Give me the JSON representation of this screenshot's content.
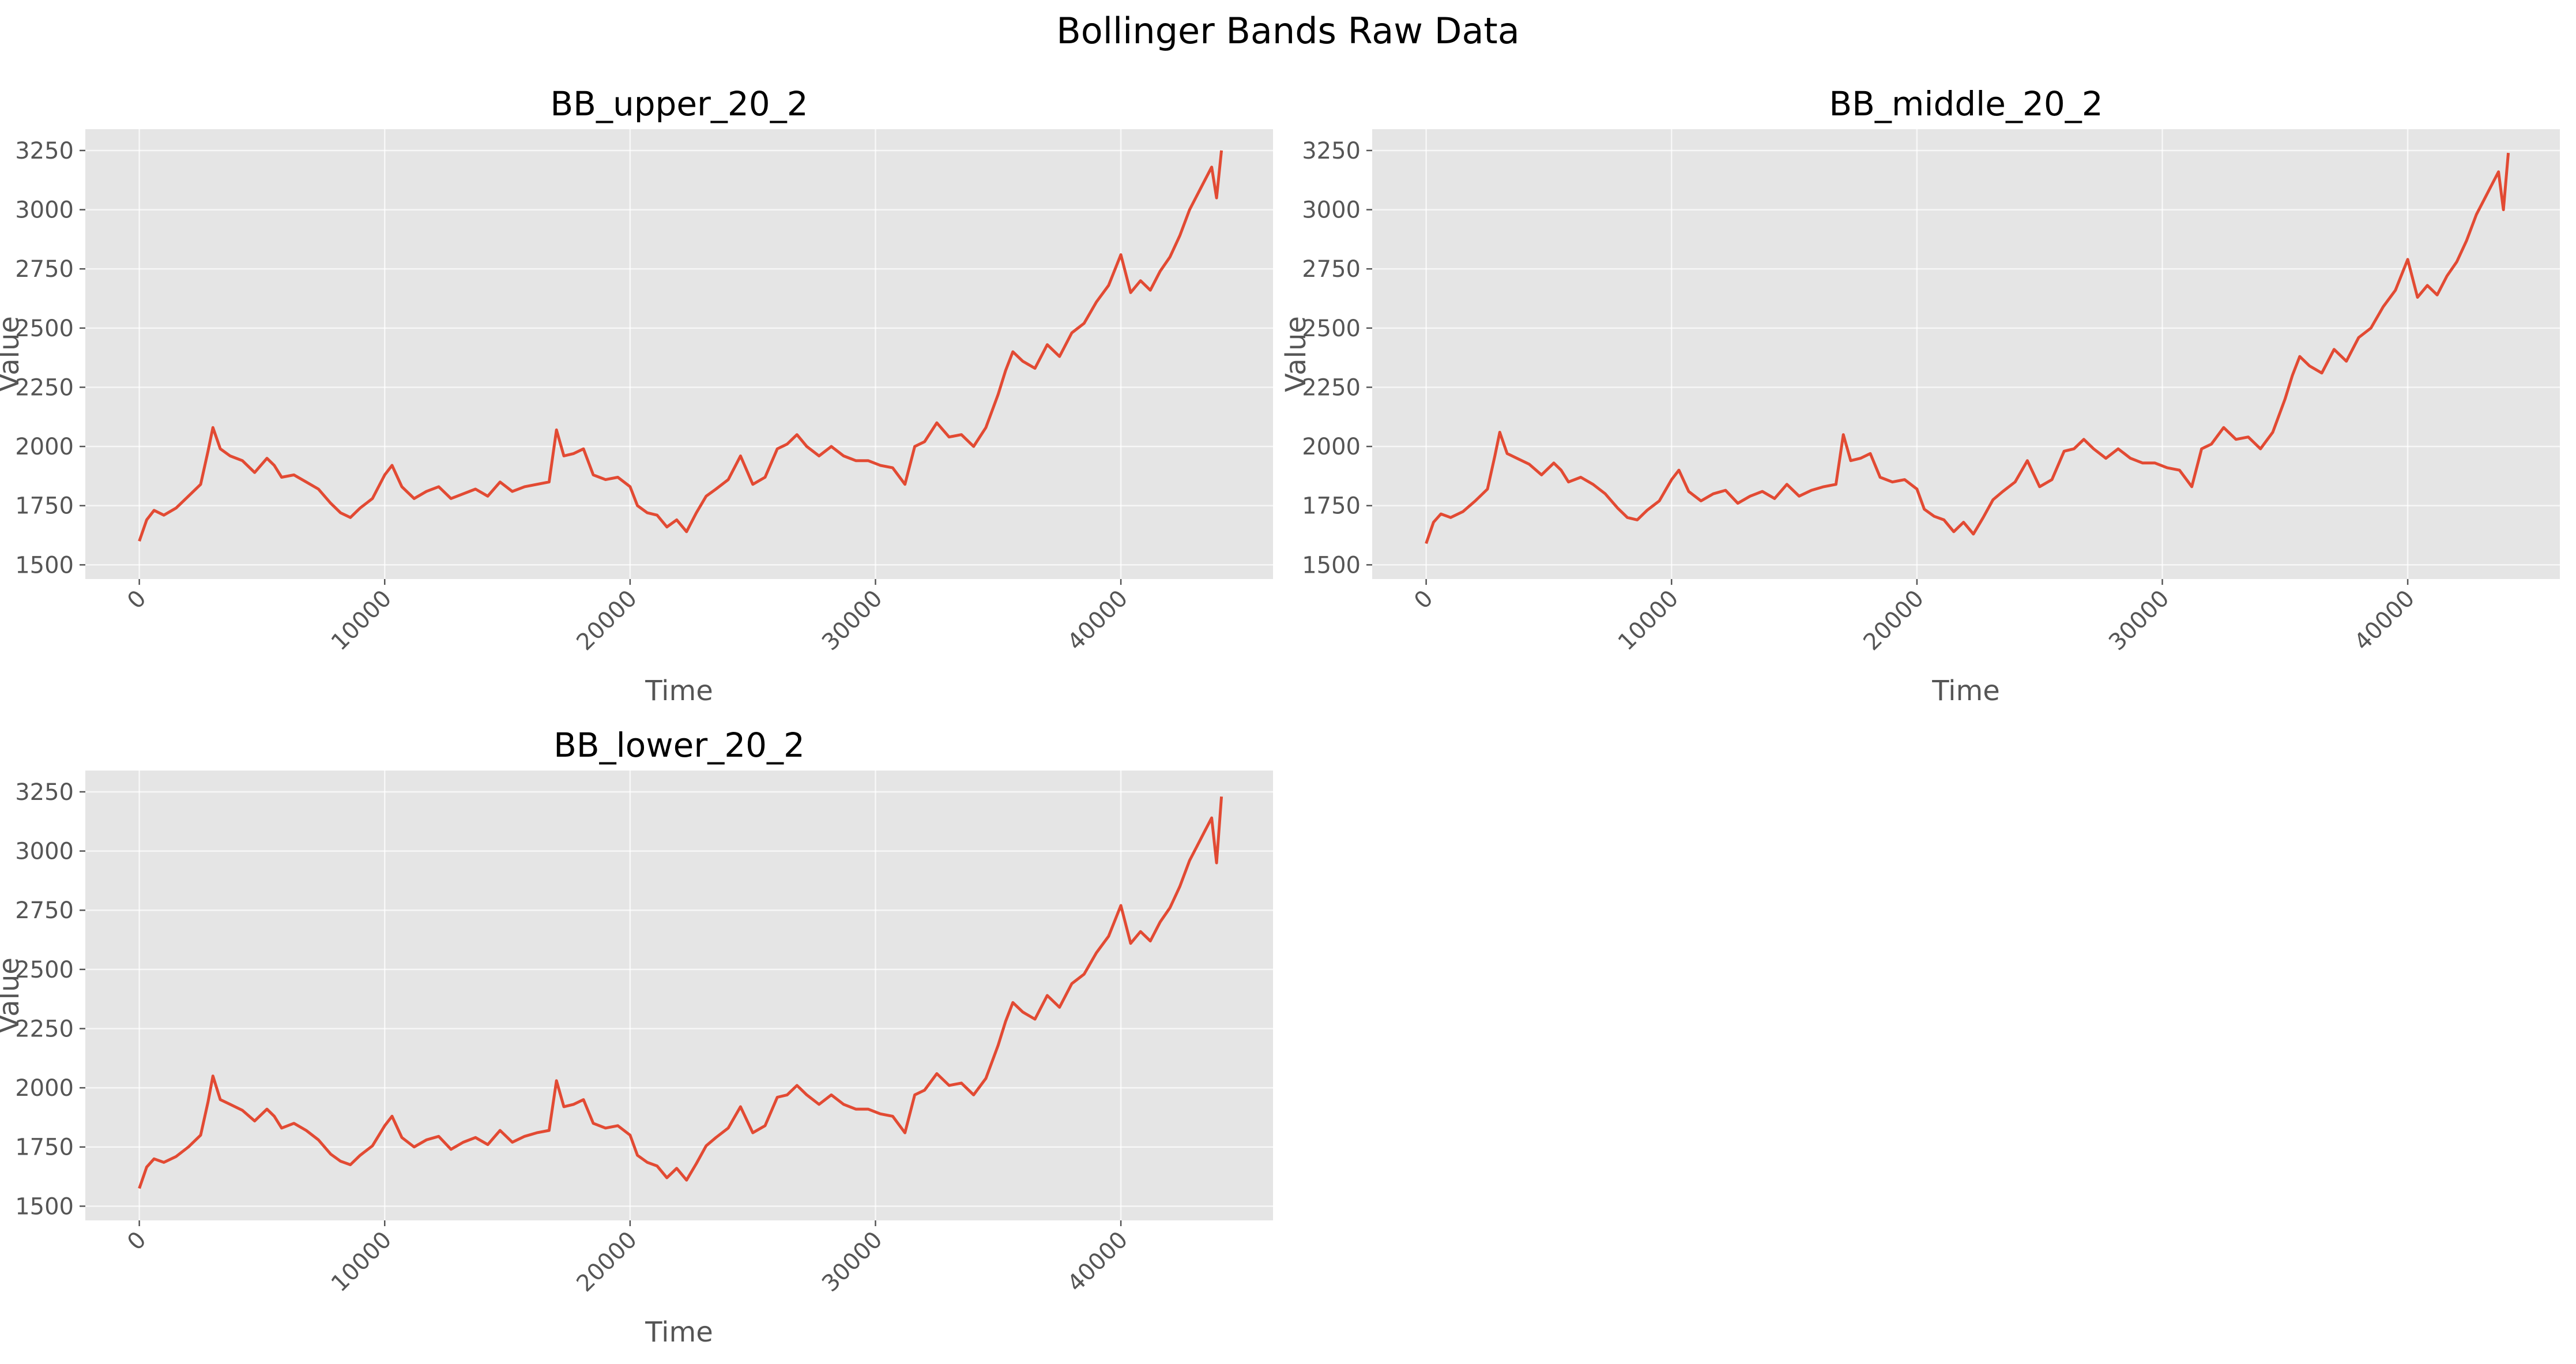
{
  "figure": {
    "suptitle": "Bollinger Bands Raw Data",
    "background": "#ffffff",
    "axes_facecolor": "#e5e5e5",
    "grid_color": "#ffffff",
    "line_color": "#e24a33",
    "tick_label_color": "#555555"
  },
  "chart_data": [
    {
      "type": "line",
      "title": "BB_upper_20_2",
      "xlabel": "Time",
      "ylabel": "Value",
      "grid": true,
      "xlim": [
        -2200,
        46200
      ],
      "ylim": [
        1440,
        3340
      ],
      "xticks": [
        0,
        10000,
        20000,
        30000,
        40000
      ],
      "yticks": [
        1500,
        1750,
        2000,
        2250,
        2500,
        2750,
        3000,
        3250
      ],
      "xticklabels": [
        "0",
        "10000",
        "20000",
        "30000",
        "40000"
      ],
      "yticklabels": [
        "1500",
        "1750",
        "2000",
        "2250",
        "2500",
        "2750",
        "3000",
        "3250"
      ],
      "series": [
        {
          "x": [
            0,
            300,
            600,
            1000,
            1500,
            2000,
            2500,
            2800,
            3000,
            3300,
            3700,
            4200,
            4700,
            5200,
            5500,
            5800,
            6300,
            6800,
            7300,
            7800,
            8200,
            8600,
            9000,
            9500,
            10000,
            10300,
            10700,
            11200,
            11700,
            12200,
            12700,
            13200,
            13700,
            14200,
            14700,
            15200,
            15700,
            16200,
            16700,
            17000,
            17300,
            17700,
            18100,
            18500,
            19000,
            19500,
            20000,
            20300,
            20700,
            21100,
            21500,
            21900,
            22300,
            22700,
            23100,
            23500,
            24000,
            24500,
            25000,
            25500,
            26000,
            26400,
            26800,
            27200,
            27700,
            28200,
            28700,
            29200,
            29700,
            30200,
            30700,
            31200,
            31600,
            32000,
            32500,
            33000,
            33500,
            34000,
            34500,
            35000,
            35300,
            35600,
            36000,
            36500,
            37000,
            37500,
            38000,
            38500,
            39000,
            39500,
            40000,
            40400,
            40800,
            41200,
            41600,
            42000,
            42400,
            42800,
            43100,
            43400,
            43700,
            43900,
            44100
          ],
          "y": [
            1600,
            1690,
            1730,
            1710,
            1740,
            1790,
            1840,
            1980,
            2080,
            1990,
            1960,
            1940,
            1890,
            1950,
            1920,
            1870,
            1880,
            1850,
            1820,
            1760,
            1720,
            1700,
            1740,
            1780,
            1880,
            1920,
            1830,
            1780,
            1810,
            1830,
            1780,
            1800,
            1820,
            1790,
            1850,
            1810,
            1830,
            1840,
            1850,
            2070,
            1960,
            1970,
            1990,
            1880,
            1860,
            1870,
            1830,
            1750,
            1720,
            1710,
            1660,
            1690,
            1640,
            1720,
            1790,
            1820,
            1860,
            1960,
            1840,
            1870,
            1990,
            2010,
            2050,
            2000,
            1960,
            2000,
            1960,
            1940,
            1940,
            1920,
            1910,
            1840,
            2000,
            2020,
            2100,
            2040,
            2050,
            2000,
            2080,
            2220,
            2320,
            2400,
            2360,
            2330,
            2430,
            2380,
            2480,
            2520,
            2610,
            2680,
            2810,
            2650,
            2700,
            2660,
            2740,
            2800,
            2890,
            3000,
            3060,
            3120,
            3180,
            3050,
            3250
          ]
        }
      ]
    },
    {
      "type": "line",
      "title": "BB_middle_20_2",
      "xlabel": "Time",
      "ylabel": "Value",
      "grid": true,
      "xlim": [
        -2200,
        46200
      ],
      "ylim": [
        1440,
        3340
      ],
      "xticks": [
        0,
        10000,
        20000,
        30000,
        40000
      ],
      "yticks": [
        1500,
        1750,
        2000,
        2250,
        2500,
        2750,
        3000,
        3250
      ],
      "xticklabels": [
        "0",
        "10000",
        "20000",
        "30000",
        "40000"
      ],
      "yticklabels": [
        "1500",
        "1750",
        "2000",
        "2250",
        "2500",
        "2750",
        "3000",
        "3250"
      ],
      "series": [
        {
          "x": [
            0,
            300,
            600,
            1000,
            1500,
            2000,
            2500,
            2800,
            3000,
            3300,
            3700,
            4200,
            4700,
            5200,
            5500,
            5800,
            6300,
            6800,
            7300,
            7800,
            8200,
            8600,
            9000,
            9500,
            10000,
            10300,
            10700,
            11200,
            11700,
            12200,
            12700,
            13200,
            13700,
            14200,
            14700,
            15200,
            15700,
            16200,
            16700,
            17000,
            17300,
            17700,
            18100,
            18500,
            19000,
            19500,
            20000,
            20300,
            20700,
            21100,
            21500,
            21900,
            22300,
            22700,
            23100,
            23500,
            24000,
            24500,
            25000,
            25500,
            26000,
            26400,
            26800,
            27200,
            27700,
            28200,
            28700,
            29200,
            29700,
            30200,
            30700,
            31200,
            31600,
            32000,
            32500,
            33000,
            33500,
            34000,
            34500,
            35000,
            35300,
            35600,
            36000,
            36500,
            37000,
            37500,
            38000,
            38500,
            39000,
            39500,
            40000,
            40400,
            40800,
            41200,
            41600,
            42000,
            42400,
            42800,
            43100,
            43400,
            43700,
            43900,
            44100
          ],
          "y": [
            1590,
            1680,
            1715,
            1700,
            1725,
            1770,
            1820,
            1960,
            2060,
            1970,
            1950,
            1925,
            1880,
            1930,
            1900,
            1850,
            1870,
            1840,
            1800,
            1740,
            1700,
            1690,
            1730,
            1770,
            1860,
            1900,
            1810,
            1770,
            1800,
            1815,
            1760,
            1790,
            1810,
            1780,
            1840,
            1790,
            1815,
            1830,
            1840,
            2050,
            1940,
            1950,
            1970,
            1870,
            1850,
            1860,
            1820,
            1735,
            1705,
            1690,
            1640,
            1680,
            1630,
            1700,
            1775,
            1810,
            1850,
            1940,
            1830,
            1860,
            1980,
            1990,
            2030,
            1990,
            1950,
            1990,
            1950,
            1930,
            1930,
            1910,
            1900,
            1830,
            1990,
            2010,
            2080,
            2030,
            2040,
            1990,
            2060,
            2200,
            2300,
            2380,
            2340,
            2310,
            2410,
            2360,
            2460,
            2500,
            2590,
            2660,
            2790,
            2630,
            2680,
            2640,
            2720,
            2780,
            2870,
            2980,
            3040,
            3100,
            3160,
            3000,
            3240
          ]
        }
      ]
    },
    {
      "type": "line",
      "title": "BB_lower_20_2",
      "xlabel": "Time",
      "ylabel": "Value",
      "grid": true,
      "xlim": [
        -2200,
        46200
      ],
      "ylim": [
        1440,
        3340
      ],
      "xticks": [
        0,
        10000,
        20000,
        30000,
        40000
      ],
      "yticks": [
        1500,
        1750,
        2000,
        2250,
        2500,
        2750,
        3000,
        3250
      ],
      "xticklabels": [
        "0",
        "10000",
        "20000",
        "30000",
        "40000"
      ],
      "yticklabels": [
        "1500",
        "1750",
        "2000",
        "2250",
        "2500",
        "2750",
        "3000",
        "3250"
      ],
      "series": [
        {
          "x": [
            0,
            300,
            600,
            1000,
            1500,
            2000,
            2500,
            2800,
            3000,
            3300,
            3700,
            4200,
            4700,
            5200,
            5500,
            5800,
            6300,
            6800,
            7300,
            7800,
            8200,
            8600,
            9000,
            9500,
            10000,
            10300,
            10700,
            11200,
            11700,
            12200,
            12700,
            13200,
            13700,
            14200,
            14700,
            15200,
            15700,
            16200,
            16700,
            17000,
            17300,
            17700,
            18100,
            18500,
            19000,
            19500,
            20000,
            20300,
            20700,
            21100,
            21500,
            21900,
            22300,
            22700,
            23100,
            23500,
            24000,
            24500,
            25000,
            25500,
            26000,
            26400,
            26800,
            27200,
            27700,
            28200,
            28700,
            29200,
            29700,
            30200,
            30700,
            31200,
            31600,
            32000,
            32500,
            33000,
            33500,
            34000,
            34500,
            35000,
            35300,
            35600,
            36000,
            36500,
            37000,
            37500,
            38000,
            38500,
            39000,
            39500,
            40000,
            40400,
            40800,
            41200,
            41600,
            42000,
            42400,
            42800,
            43100,
            43400,
            43700,
            43900,
            44100
          ],
          "y": [
            1575,
            1665,
            1700,
            1685,
            1710,
            1750,
            1800,
            1940,
            2050,
            1950,
            1930,
            1905,
            1860,
            1910,
            1880,
            1830,
            1850,
            1820,
            1780,
            1720,
            1690,
            1675,
            1715,
            1755,
            1840,
            1880,
            1790,
            1750,
            1780,
            1795,
            1740,
            1770,
            1790,
            1760,
            1820,
            1770,
            1795,
            1810,
            1820,
            2030,
            1920,
            1930,
            1950,
            1850,
            1830,
            1840,
            1800,
            1715,
            1685,
            1670,
            1620,
            1660,
            1610,
            1680,
            1755,
            1790,
            1830,
            1920,
            1810,
            1840,
            1960,
            1970,
            2010,
            1970,
            1930,
            1970,
            1930,
            1910,
            1910,
            1890,
            1880,
            1810,
            1970,
            1990,
            2060,
            2010,
            2020,
            1970,
            2040,
            2180,
            2280,
            2360,
            2320,
            2290,
            2390,
            2340,
            2440,
            2480,
            2570,
            2640,
            2770,
            2610,
            2660,
            2620,
            2700,
            2760,
            2850,
            2960,
            3020,
            3080,
            3140,
            2950,
            3230
          ]
        }
      ]
    }
  ]
}
